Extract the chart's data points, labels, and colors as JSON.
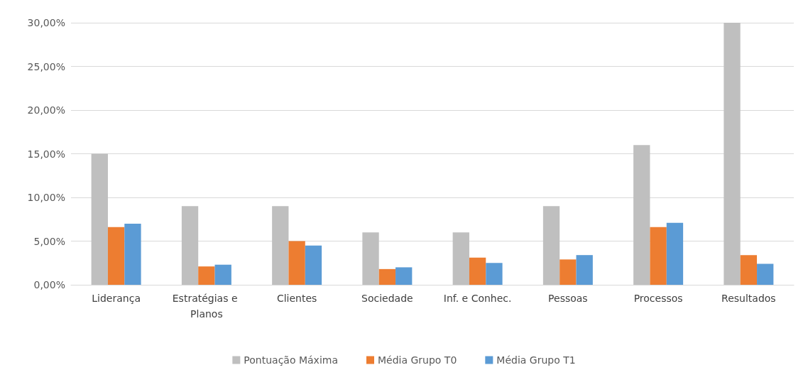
{
  "chart_data": {
    "type": "bar",
    "categories": [
      "Liderança",
      "Estratégias e Planos",
      "Clientes",
      "Sociedade",
      "Inf. e Conhec.",
      "Pessoas",
      "Processos",
      "Resultados"
    ],
    "series": [
      {
        "name": "Pontuação Máxima",
        "color": "#bfbfbf",
        "values": [
          15,
          9,
          9,
          6,
          6,
          9,
          16,
          30
        ]
      },
      {
        "name": "Média Grupo T0",
        "color": "#ed7d31",
        "values": [
          6.6,
          2.1,
          5.0,
          1.8,
          3.1,
          2.9,
          6.6,
          3.4
        ]
      },
      {
        "name": "Média Grupo T1",
        "color": "#5b9bd5",
        "values": [
          7.0,
          2.3,
          4.5,
          2.0,
          2.5,
          3.4,
          7.1,
          2.4
        ]
      }
    ],
    "ylim": [
      0,
      30
    ],
    "yticks": [
      {
        "value": 0,
        "label": "0,00%"
      },
      {
        "value": 5,
        "label": "5,00%"
      },
      {
        "value": 10,
        "label": "10,00%"
      },
      {
        "value": 15,
        "label": "15,00%"
      },
      {
        "value": 20,
        "label": "20,00%"
      },
      {
        "value": 25,
        "label": "25,00%"
      },
      {
        "value": 30,
        "label": "30,00%"
      }
    ],
    "grid": "y",
    "legend": "bottom"
  }
}
